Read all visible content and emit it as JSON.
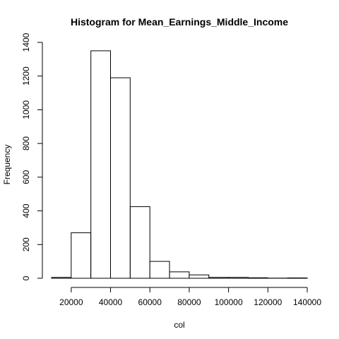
{
  "chart_data": {
    "type": "bar",
    "title": "Histogram for  Mean_Earnings_Middle_Income",
    "xlabel": "col",
    "ylabel": "Frequency",
    "xlim": [
      10000,
      140000
    ],
    "ylim": [
      0,
      1400
    ],
    "x_ticks": [
      20000,
      40000,
      60000,
      80000,
      100000,
      120000,
      140000
    ],
    "y_ticks": [
      0,
      200,
      400,
      600,
      800,
      1000,
      1200,
      1400
    ],
    "bin_width": 10000,
    "bins": [
      {
        "start": 10000,
        "end": 20000,
        "count": 5
      },
      {
        "start": 20000,
        "end": 30000,
        "count": 270
      },
      {
        "start": 30000,
        "end": 40000,
        "count": 1350
      },
      {
        "start": 40000,
        "end": 50000,
        "count": 1190
      },
      {
        "start": 50000,
        "end": 60000,
        "count": 425
      },
      {
        "start": 60000,
        "end": 70000,
        "count": 100
      },
      {
        "start": 70000,
        "end": 80000,
        "count": 38
      },
      {
        "start": 80000,
        "end": 90000,
        "count": 20
      },
      {
        "start": 90000,
        "end": 100000,
        "count": 5
      },
      {
        "start": 100000,
        "end": 110000,
        "count": 5
      },
      {
        "start": 110000,
        "end": 120000,
        "count": 3
      },
      {
        "start": 120000,
        "end": 130000,
        "count": 1
      },
      {
        "start": 130000,
        "end": 140000,
        "count": 2
      }
    ],
    "grid": false,
    "legend": "none"
  }
}
